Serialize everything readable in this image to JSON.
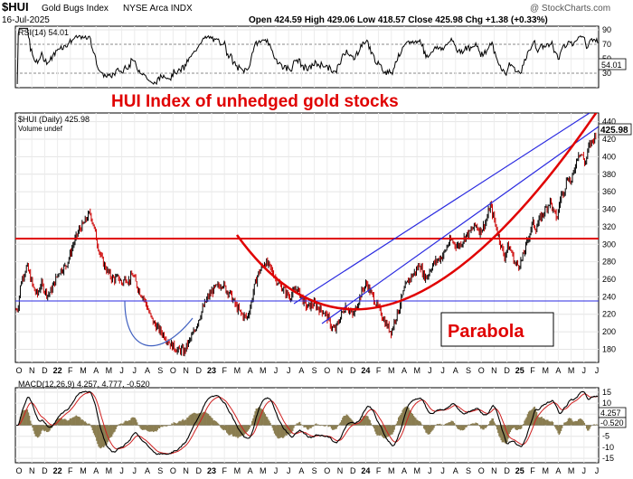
{
  "header": {
    "symbol": "$HUI",
    "name": "Gold Bugs Index",
    "exchange": "NYSE Arca INDX",
    "date": "16-Jul-2025",
    "ohlc": "Open 424.59  High 429.06  Low 418.57  Close 425.98  Chg +1.38 (+0.33%)",
    "watermark": "@ StockCharts.com"
  },
  "annotations": {
    "title": "HUI Index of unhedged gold stocks",
    "parabola": "Parabola"
  },
  "colors": {
    "price_up": "#000000",
    "price_down": "#cc0000",
    "annotation_red": "#e00000",
    "channel_blue": "#2a2ae0",
    "macd_hist": "#8a7d50"
  },
  "chart_data": [
    {
      "type": "line",
      "panel": "rsi",
      "label": "RSI(14) 54.01",
      "current": "54.01",
      "y_ticks": [
        "90",
        "70",
        "50",
        "30"
      ],
      "reference_lines": [
        70,
        30
      ],
      "ylim": [
        10,
        95
      ]
    },
    {
      "type": "candlestick",
      "panel": "price",
      "label": "$HUI (Daily) 425.98",
      "volume_label": "Volume undef",
      "current": "425.98",
      "y_ticks": [
        "180",
        "200",
        "220",
        "240",
        "260",
        "280",
        "300",
        "320",
        "340",
        "360",
        "380",
        "400",
        "420",
        "440"
      ],
      "ylim": [
        165,
        450
      ],
      "x_axis_labels": [
        "O",
        "N",
        "D",
        "22",
        "F",
        "M",
        "A",
        "M",
        "J",
        "J",
        "A",
        "S",
        "O",
        "N",
        "D",
        "23",
        "F",
        "M",
        "A",
        "M",
        "J",
        "J",
        "A",
        "S",
        "O",
        "N",
        "D",
        "24",
        "F",
        "M",
        "A",
        "M",
        "J",
        "J",
        "A",
        "S",
        "O",
        "N",
        "D",
        "25",
        "F",
        "M",
        "A",
        "M",
        "J",
        "J"
      ],
      "x_axis_bold": [
        "22",
        "23",
        "24",
        "25"
      ],
      "series_close_approx": [
        [
          0,
          225
        ],
        [
          2,
          228
        ],
        [
          5,
          255
        ],
        [
          8,
          265
        ],
        [
          12,
          275
        ],
        [
          16,
          262
        ],
        [
          20,
          248
        ],
        [
          24,
          242
        ],
        [
          28,
          255
        ],
        [
          32,
          248
        ],
        [
          36,
          242
        ],
        [
          40,
          248
        ],
        [
          44,
          258
        ],
        [
          48,
          268
        ],
        [
          52,
          272
        ],
        [
          56,
          275
        ],
        [
          60,
          285
        ],
        [
          64,
          298
        ],
        [
          68,
          308
        ],
        [
          72,
          318
        ],
        [
          76,
          322
        ],
        [
          80,
          330
        ],
        [
          84,
          336
        ],
        [
          88,
          320
        ],
        [
          92,
          302
        ],
        [
          96,
          285
        ],
        [
          100,
          276
        ],
        [
          104,
          268
        ],
        [
          108,
          262
        ],
        [
          112,
          260
        ],
        [
          116,
          262
        ],
        [
          120,
          255
        ],
        [
          124,
          262
        ],
        [
          128,
          258
        ],
        [
          132,
          266
        ],
        [
          136,
          255
        ],
        [
          140,
          246
        ],
        [
          144,
          240
        ],
        [
          148,
          230
        ],
        [
          152,
          218
        ],
        [
          156,
          210
        ],
        [
          160,
          205
        ],
        [
          164,
          200
        ],
        [
          168,
          196
        ],
        [
          172,
          190
        ],
        [
          176,
          185
        ],
        [
          180,
          182
        ],
        [
          184,
          178
        ],
        [
          188,
          180
        ],
        [
          190,
          176
        ],
        [
          194,
          185
        ],
        [
          198,
          192
        ],
        [
          202,
          200
        ],
        [
          206,
          212
        ],
        [
          210,
          222
        ],
        [
          214,
          232
        ],
        [
          218,
          240
        ],
        [
          222,
          246
        ],
        [
          226,
          250
        ],
        [
          230,
          252
        ],
        [
          234,
          256
        ],
        [
          238,
          248
        ],
        [
          242,
          245
        ],
        [
          246,
          236
        ],
        [
          250,
          228
        ],
        [
          254,
          222
        ],
        [
          258,
          218
        ],
        [
          262,
          216
        ],
        [
          266,
          230
        ],
        [
          270,
          250
        ],
        [
          274,
          265
        ],
        [
          278,
          272
        ],
        [
          282,
          280
        ],
        [
          286,
          276
        ],
        [
          290,
          270
        ],
        [
          294,
          262
        ],
        [
          298,
          255
        ],
        [
          302,
          250
        ],
        [
          306,
          245
        ],
        [
          310,
          240
        ],
        [
          314,
          244
        ],
        [
          318,
          250
        ],
        [
          322,
          243
        ],
        [
          326,
          235
        ],
        [
          330,
          228
        ],
        [
          334,
          230
        ],
        [
          338,
          232
        ],
        [
          342,
          228
        ],
        [
          346,
          225
        ],
        [
          350,
          222
        ],
        [
          354,
          215
        ],
        [
          358,
          205
        ],
        [
          362,
          202
        ],
        [
          366,
          212
        ],
        [
          370,
          222
        ],
        [
          374,
          230
        ],
        [
          378,
          225
        ],
        [
          382,
          218
        ],
        [
          386,
          228
        ],
        [
          390,
          240
        ],
        [
          394,
          250
        ],
        [
          398,
          255
        ],
        [
          402,
          245
        ],
        [
          406,
          238
        ],
        [
          410,
          228
        ],
        [
          414,
          222
        ],
        [
          418,
          212
        ],
        [
          422,
          205
        ],
        [
          426,
          200
        ],
        [
          430,
          215
        ],
        [
          434,
          225
        ],
        [
          438,
          240
        ],
        [
          442,
          252
        ],
        [
          446,
          260
        ],
        [
          450,
          265
        ],
        [
          454,
          270
        ],
        [
          458,
          278
        ],
        [
          462,
          265
        ],
        [
          466,
          262
        ],
        [
          470,
          272
        ],
        [
          474,
          278
        ],
        [
          478,
          282
        ],
        [
          482,
          285
        ],
        [
          486,
          290
        ],
        [
          490,
          300
        ],
        [
          494,
          305
        ],
        [
          498,
          300
        ],
        [
          502,
          298
        ],
        [
          506,
          303
        ],
        [
          510,
          310
        ],
        [
          514,
          312
        ],
        [
          518,
          318
        ],
        [
          522,
          322
        ],
        [
          526,
          315
        ],
        [
          530,
          320
        ],
        [
          534,
          328
        ],
        [
          538,
          345
        ],
        [
          542,
          330
        ],
        [
          546,
          315
        ],
        [
          550,
          300
        ],
        [
          554,
          285
        ],
        [
          558,
          298
        ],
        [
          562,
          292
        ],
        [
          566,
          278
        ],
        [
          570,
          276
        ],
        [
          574,
          282
        ],
        [
          578,
          296
        ],
        [
          582,
          310
        ],
        [
          586,
          325
        ],
        [
          590,
          318
        ],
        [
          594,
          328
        ],
        [
          598,
          335
        ],
        [
          602,
          342
        ],
        [
          606,
          350
        ],
        [
          610,
          336
        ],
        [
          614,
          330
        ],
        [
          618,
          355
        ],
        [
          622,
          362
        ],
        [
          626,
          378
        ],
        [
          630,
          370
        ],
        [
          634,
          388
        ],
        [
          638,
          405
        ],
        [
          642,
          402
        ],
        [
          646,
          392
        ],
        [
          650,
          412
        ],
        [
          654,
          418
        ],
        [
          658,
          426
        ]
      ]
    },
    {
      "type": "line",
      "panel": "macd",
      "label": "MACD(12,26,9) 4.257, 4.777, -0.520",
      "macd": "4.257",
      "signal": "4.777",
      "histogram": "-0.520",
      "y_ticks": [
        "15",
        "10",
        "5",
        "0",
        "-5",
        "-10",
        "-15"
      ],
      "ylim": [
        -17,
        17
      ],
      "x_axis_labels": [
        "O",
        "N",
        "D",
        "22",
        "F",
        "M",
        "A",
        "M",
        "J",
        "J",
        "A",
        "S",
        "O",
        "N",
        "D",
        "23",
        "F",
        "M",
        "A",
        "M",
        "J",
        "J",
        "A",
        "S",
        "O",
        "N",
        "D",
        "24",
        "F",
        "M",
        "A",
        "M",
        "J",
        "J",
        "A",
        "S",
        "O",
        "N",
        "D",
        "25",
        "F",
        "M",
        "A",
        "M",
        "J",
        "J"
      ]
    }
  ]
}
